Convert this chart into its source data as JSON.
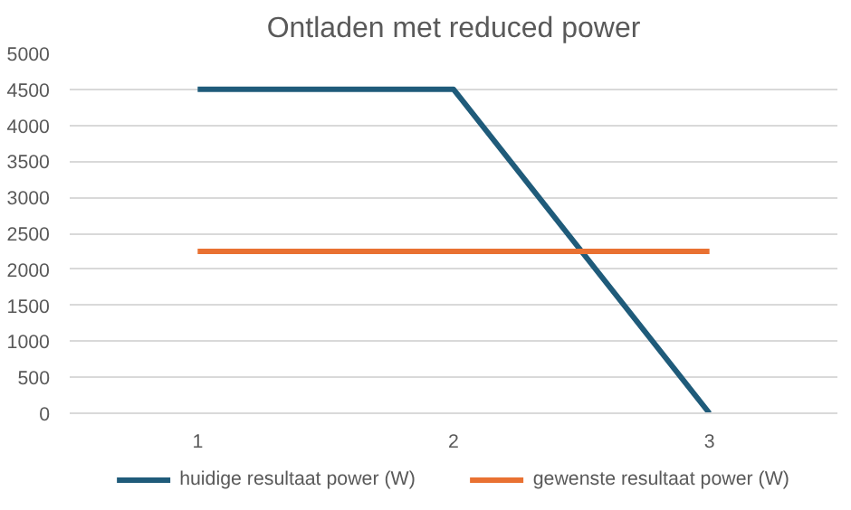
{
  "chart_data": {
    "type": "line",
    "title": "Ontladen met reduced power",
    "categories": [
      "1",
      "2",
      "3"
    ],
    "series": [
      {
        "name": "huidige resultaat power (W)",
        "color": "#1f5b7a",
        "values": [
          4500,
          4500,
          0
        ]
      },
      {
        "name": "gewenste resultaat power (W)",
        "color": "#e97132",
        "values": [
          2250,
          2250,
          2250
        ]
      }
    ],
    "ylim": [
      0,
      5000
    ],
    "yticks": [
      0,
      500,
      1000,
      1500,
      2000,
      2500,
      3000,
      3500,
      4000,
      4500,
      5000
    ],
    "grid": "y",
    "legend": "bottom",
    "marker": "none",
    "line_style": "solid"
  }
}
